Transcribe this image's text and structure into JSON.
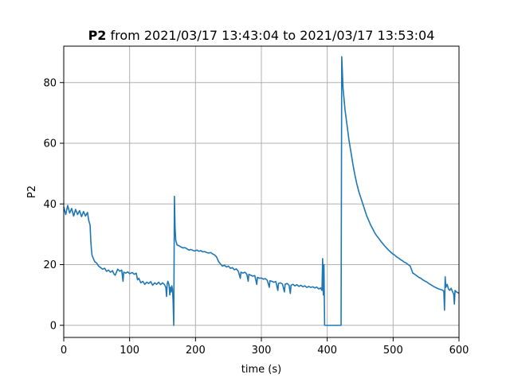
{
  "chart_data": {
    "type": "line",
    "title_bold": "P2",
    "title_rest": " from 2021/03/17 13:43:04 to 2021/03/17 13:53:04",
    "xlabel": "time (s)",
    "ylabel": "P2",
    "xlim": [
      0,
      600
    ],
    "ylim": [
      -4,
      92
    ],
    "xticks": [
      0,
      100,
      200,
      300,
      400,
      500,
      600
    ],
    "yticks": [
      0,
      20,
      40,
      60,
      80
    ],
    "grid": true,
    "colors": {
      "series": "#1f77b4"
    },
    "series": [
      {
        "points": [
          [
            0,
            39
          ],
          [
            3,
            36.5
          ],
          [
            6,
            39.5
          ],
          [
            9,
            37
          ],
          [
            12,
            38.5
          ],
          [
            15,
            36
          ],
          [
            18,
            38.2
          ],
          [
            21,
            36.5
          ],
          [
            24,
            37.8
          ],
          [
            27,
            35.8
          ],
          [
            30,
            37.5
          ],
          [
            33,
            36
          ],
          [
            36,
            37.2
          ],
          [
            38,
            34.5
          ],
          [
            40,
            33
          ],
          [
            41,
            28
          ],
          [
            42,
            25
          ],
          [
            43,
            23
          ],
          [
            45,
            22
          ],
          [
            47,
            21
          ],
          [
            50,
            20.5
          ],
          [
            53,
            19.5
          ],
          [
            56,
            19
          ],
          [
            59,
            18.5
          ],
          [
            62,
            18.8
          ],
          [
            65,
            17.8
          ],
          [
            68,
            18.2
          ],
          [
            71,
            17.5
          ],
          [
            74,
            18
          ],
          [
            76,
            17
          ],
          [
            78,
            16.5
          ],
          [
            80,
            17.5
          ],
          [
            82,
            18.5
          ],
          [
            85,
            17.8
          ],
          [
            88,
            18.2
          ],
          [
            90,
            14.5
          ],
          [
            91,
            17.5
          ],
          [
            94,
            17.2
          ],
          [
            97,
            17.6
          ],
          [
            100,
            17
          ],
          [
            104,
            17.4
          ],
          [
            107,
            16.8
          ],
          [
            110,
            17.2
          ],
          [
            112,
            15
          ],
          [
            114,
            15.5
          ],
          [
            117,
            14
          ],
          [
            120,
            14.5
          ],
          [
            123,
            13.5
          ],
          [
            126,
            14.2
          ],
          [
            129,
            13.8
          ],
          [
            132,
            14.4
          ],
          [
            135,
            13.2
          ],
          [
            138,
            14
          ],
          [
            141,
            13.5
          ],
          [
            144,
            14.2
          ],
          [
            147,
            13.4
          ],
          [
            150,
            14
          ],
          [
            153,
            13.4
          ],
          [
            155,
            12.5
          ],
          [
            156,
            9.5
          ],
          [
            157,
            13.5
          ],
          [
            158,
            14.5
          ],
          [
            159,
            14
          ],
          [
            160,
            13
          ],
          [
            161,
            10
          ],
          [
            162,
            12.5
          ],
          [
            163,
            11
          ],
          [
            164,
            13
          ],
          [
            165,
            12
          ],
          [
            166,
            8
          ],
          [
            167,
            0
          ],
          [
            168,
            42.5
          ],
          [
            169,
            32
          ],
          [
            170,
            28
          ],
          [
            172,
            26.5
          ],
          [
            175,
            26.2
          ],
          [
            178,
            25.8
          ],
          [
            181,
            25.5
          ],
          [
            184,
            25.6
          ],
          [
            187,
            25.2
          ],
          [
            190,
            24.8
          ],
          [
            193,
            25
          ],
          [
            196,
            24.7
          ],
          [
            199,
            24.5
          ],
          [
            202,
            24.8
          ],
          [
            205,
            24.4
          ],
          [
            208,
            24.6
          ],
          [
            211,
            24.2
          ],
          [
            214,
            24.3
          ],
          [
            217,
            24
          ],
          [
            220,
            23.8
          ],
          [
            223,
            24
          ],
          [
            226,
            23.5
          ],
          [
            229,
            23.2
          ],
          [
            232,
            22.5
          ],
          [
            235,
            21
          ],
          [
            238,
            20.2
          ],
          [
            241,
            19.5
          ],
          [
            244,
            19.8
          ],
          [
            247,
            19.2
          ],
          [
            250,
            19.5
          ],
          [
            253,
            18.8
          ],
          [
            256,
            19
          ],
          [
            259,
            18.3
          ],
          [
            262,
            18.6
          ],
          [
            265,
            17.8
          ],
          [
            268,
            15.5
          ],
          [
            269,
            17.5
          ],
          [
            272,
            17.2
          ],
          [
            275,
            17.5
          ],
          [
            278,
            16.8
          ],
          [
            280,
            14.5
          ],
          [
            281,
            16.8
          ],
          [
            284,
            16.5
          ],
          [
            287,
            16.2
          ],
          [
            290,
            16.4
          ],
          [
            293,
            13.5
          ],
          [
            294,
            15.8
          ],
          [
            297,
            15.5
          ],
          [
            300,
            15.6
          ],
          [
            303,
            15.2
          ],
          [
            306,
            15.4
          ],
          [
            309,
            14.8
          ],
          [
            312,
            12.5
          ],
          [
            313,
            14.7
          ],
          [
            316,
            14.5
          ],
          [
            319,
            14.2
          ],
          [
            322,
            14.4
          ],
          [
            325,
            11.5
          ],
          [
            326,
            13.8
          ],
          [
            329,
            14
          ],
          [
            332,
            13.6
          ],
          [
            335,
            11
          ],
          [
            336,
            13.5
          ],
          [
            339,
            13.8
          ],
          [
            342,
            13.2
          ],
          [
            344,
            10.5
          ],
          [
            345,
            13.2
          ],
          [
            348,
            13.5
          ],
          [
            351,
            13
          ],
          [
            354,
            13.4
          ],
          [
            357,
            12.8
          ],
          [
            360,
            13.2
          ],
          [
            363,
            12.7
          ],
          [
            366,
            13
          ],
          [
            369,
            12.5
          ],
          [
            372,
            12.8
          ],
          [
            375,
            12.5
          ],
          [
            378,
            12.7
          ],
          [
            381,
            12.3
          ],
          [
            384,
            12.6
          ],
          [
            387,
            12
          ],
          [
            390,
            12.3
          ],
          [
            392,
            11.5
          ],
          [
            393,
            22
          ],
          [
            394,
            10
          ],
          [
            395,
            20
          ],
          [
            396,
            0
          ],
          [
            400,
            0
          ],
          [
            410,
            0
          ],
          [
            420,
            0
          ],
          [
            421,
            0
          ],
          [
            422,
            88.5
          ],
          [
            424,
            78
          ],
          [
            427,
            71
          ],
          [
            430,
            66
          ],
          [
            433,
            61
          ],
          [
            436,
            57
          ],
          [
            439,
            53
          ],
          [
            442,
            49.5
          ],
          [
            445,
            46.5
          ],
          [
            448,
            44
          ],
          [
            451,
            42
          ],
          [
            454,
            40
          ],
          [
            457,
            38
          ],
          [
            460,
            36
          ],
          [
            463,
            34.5
          ],
          [
            466,
            33
          ],
          [
            469,
            31.8
          ],
          [
            472,
            30.5
          ],
          [
            475,
            29.5
          ],
          [
            478,
            28.7
          ],
          [
            481,
            27.8
          ],
          [
            484,
            27
          ],
          [
            487,
            26.2
          ],
          [
            490,
            25.5
          ],
          [
            493,
            24.8
          ],
          [
            496,
            24.2
          ],
          [
            499,
            23.6
          ],
          [
            502,
            23.2
          ],
          [
            505,
            22.6
          ],
          [
            508,
            22.2
          ],
          [
            511,
            21.7
          ],
          [
            514,
            21.3
          ],
          [
            517,
            20.8
          ],
          [
            520,
            20.5
          ],
          [
            523,
            20
          ],
          [
            526,
            19.5
          ],
          [
            528,
            18.3
          ],
          [
            530,
            17.2
          ],
          [
            533,
            16.8
          ],
          [
            536,
            16.3
          ],
          [
            539,
            15.8
          ],
          [
            542,
            15.5
          ],
          [
            545,
            15
          ],
          [
            548,
            14.6
          ],
          [
            551,
            14.3
          ],
          [
            554,
            13.8
          ],
          [
            557,
            13.4
          ],
          [
            560,
            13
          ],
          [
            563,
            12.6
          ],
          [
            566,
            12.3
          ],
          [
            569,
            12
          ],
          [
            572,
            11.8
          ],
          [
            575,
            11.6
          ],
          [
            577,
            11.2
          ],
          [
            578,
            5
          ],
          [
            579,
            16
          ],
          [
            580,
            12.5
          ],
          [
            582,
            13.5
          ],
          [
            584,
            12
          ],
          [
            586,
            11.5
          ],
          [
            588,
            12.2
          ],
          [
            590,
            11.2
          ],
          [
            592,
            10.2
          ],
          [
            593,
            7
          ],
          [
            594,
            11.5
          ],
          [
            596,
            11
          ],
          [
            598,
            10.8
          ],
          [
            600,
            10.5
          ]
        ]
      }
    ]
  }
}
